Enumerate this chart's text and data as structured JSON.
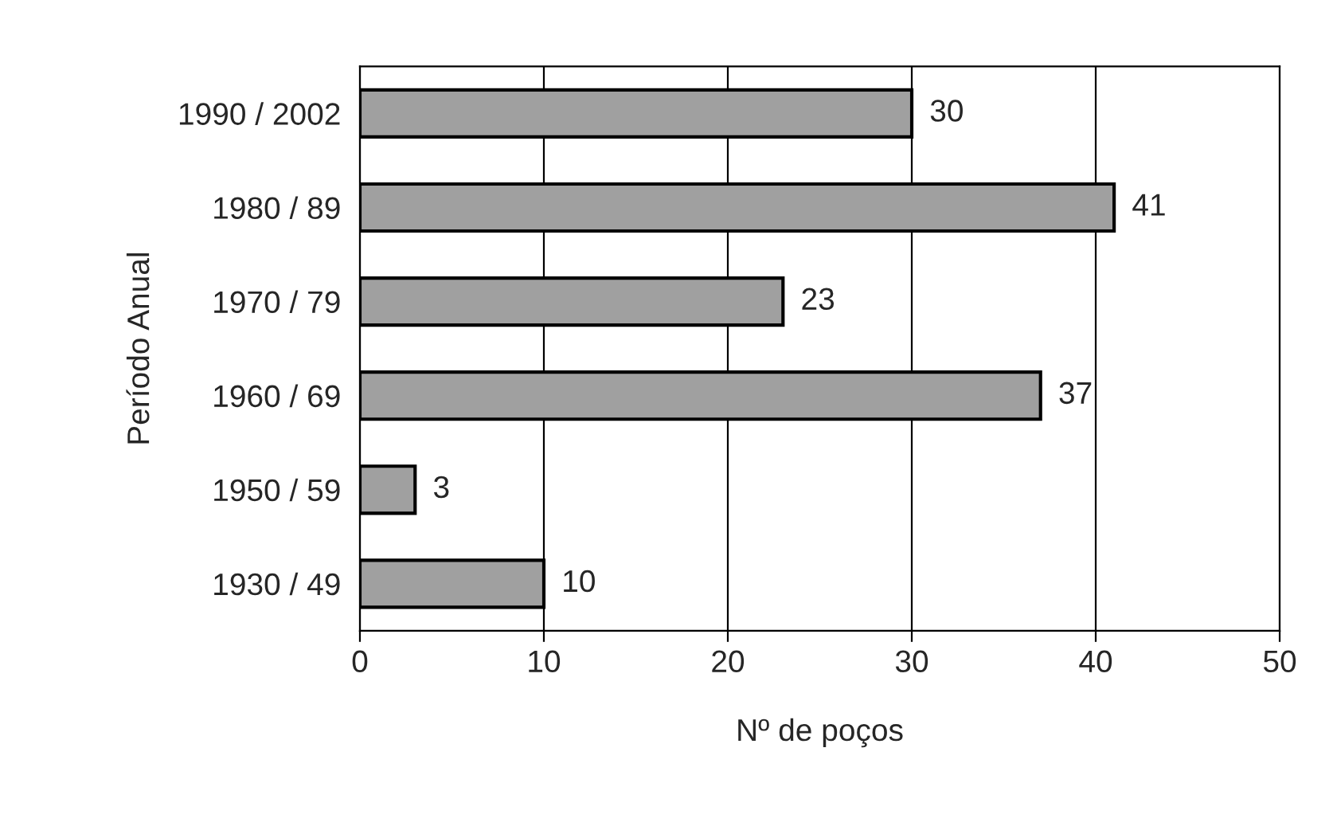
{
  "chart_data": {
    "type": "bar",
    "orientation": "horizontal",
    "xlabel": "Nº de poços",
    "ylabel": "Período Anual",
    "categories": [
      "1990 / 2002",
      "1980 / 89",
      "1970 / 79",
      "1960 / 69",
      "1950 / 59",
      "1930 / 49"
    ],
    "values": [
      30,
      41,
      23,
      37,
      3,
      10
    ],
    "color": "#a0a0a0",
    "xlim": [
      0,
      50
    ],
    "xticks": [
      0,
      10,
      20,
      30,
      40,
      50
    ],
    "grid": "x",
    "data_labels": true
  }
}
